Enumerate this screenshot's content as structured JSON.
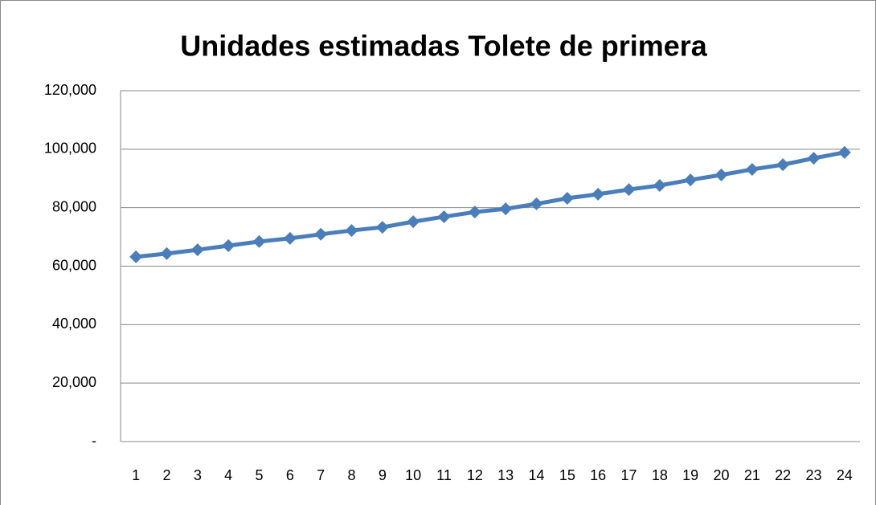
{
  "chart_data": {
    "type": "line",
    "title": "Unidades estimadas Tolete de primera",
    "categories": [
      "1",
      "2",
      "3",
      "4",
      "5",
      "6",
      "7",
      "8",
      "9",
      "10",
      "11",
      "12",
      "13",
      "14",
      "15",
      "16",
      "17",
      "18",
      "19",
      "20",
      "21",
      "22",
      "23",
      "24"
    ],
    "series": [
      {
        "color": "#4a7ebb",
        "values": [
          63200,
          64300,
          65600,
          67000,
          68400,
          69500,
          70900,
          72200,
          73300,
          75200,
          76900,
          78500,
          79600,
          81300,
          83200,
          84600,
          86200,
          87600,
          89500,
          91200,
          93100,
          94700,
          96900,
          98900
        ]
      }
    ],
    "ylim": [
      0,
      120000
    ],
    "yticks": [
      {
        "value": 0,
        "label": "-"
      },
      {
        "value": 20000,
        "label": "20,000"
      },
      {
        "value": 40000,
        "label": "40,000"
      },
      {
        "value": 60000,
        "label": "60,000"
      },
      {
        "value": 80000,
        "label": "80,000"
      },
      {
        "value": 100000,
        "label": "100,000"
      },
      {
        "value": 120000,
        "label": "120,000"
      }
    ],
    "grid": true
  }
}
